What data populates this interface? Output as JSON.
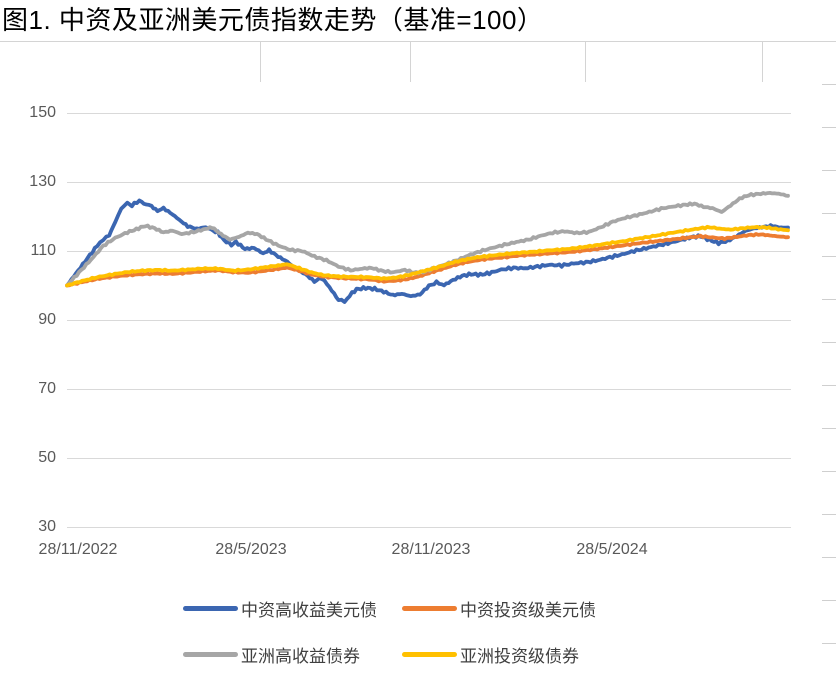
{
  "figure": {
    "title": "图1. 中资及亚洲美元债指数走势（基准=100）"
  },
  "chart_data": {
    "type": "line",
    "title": "图1. 中资及亚洲美元债指数走势（基准=100）",
    "baseline_note": "基准=100",
    "x_start_date": "28/11/2022",
    "x_unit": "months_after_start",
    "x_range_months": [
      0,
      24
    ],
    "x_tick_months": [
      0,
      6,
      12,
      18
    ],
    "x_tick_labels": [
      "28/11/2022",
      "28/5/2023",
      "28/11/2023",
      "28/5/2024"
    ],
    "ylim": [
      30,
      150
    ],
    "yticks": [
      150,
      130,
      110,
      90,
      70,
      50,
      30
    ],
    "grid": "horizontal",
    "legend_position": "bottom",
    "grid_color": "#d9d9d9",
    "axis_label_color": "#595959",
    "series": [
      {
        "name": "中资高收益美元债",
        "color": "#3b66b1",
        "points": [
          [
            0,
            100
          ],
          [
            0.3,
            103.5
          ],
          [
            0.6,
            107
          ],
          [
            1.0,
            111.5
          ],
          [
            1.2,
            113.5
          ],
          [
            1.4,
            114.5
          ],
          [
            1.6,
            118.5
          ],
          [
            1.8,
            122.5
          ],
          [
            2.0,
            123.8
          ],
          [
            2.15,
            123.2
          ],
          [
            2.4,
            124.6
          ],
          [
            2.55,
            123.8
          ],
          [
            2.8,
            123.0
          ],
          [
            3.0,
            121.6
          ],
          [
            3.2,
            122.4
          ],
          [
            3.5,
            120.6
          ],
          [
            3.8,
            118.5
          ],
          [
            4.0,
            117.2
          ],
          [
            4.3,
            116.4
          ],
          [
            4.6,
            116.9
          ],
          [
            5.0,
            115.3
          ],
          [
            5.2,
            113.2
          ],
          [
            5.45,
            111.8
          ],
          [
            5.6,
            112.6
          ],
          [
            5.9,
            110.6
          ],
          [
            6.2,
            110.9
          ],
          [
            6.5,
            109.3
          ],
          [
            6.7,
            110.2
          ],
          [
            7.0,
            108.4
          ],
          [
            7.3,
            106.9
          ],
          [
            7.6,
            104.7
          ],
          [
            7.9,
            103.3
          ],
          [
            8.2,
            101.2
          ],
          [
            8.45,
            102.2
          ],
          [
            8.7,
            99.5
          ],
          [
            9.0,
            95.8
          ],
          [
            9.2,
            95.3
          ],
          [
            9.45,
            97.8
          ],
          [
            9.6,
            98.9
          ],
          [
            9.9,
            99.3
          ],
          [
            10.2,
            99.0
          ],
          [
            10.5,
            98.2
          ],
          [
            10.8,
            97.2
          ],
          [
            11.1,
            97.6
          ],
          [
            11.4,
            96.9
          ],
          [
            11.7,
            97.4
          ],
          [
            12.0,
            99.9
          ],
          [
            12.25,
            100.9
          ],
          [
            12.5,
            100.1
          ],
          [
            12.8,
            101.6
          ],
          [
            13.1,
            102.8
          ],
          [
            13.4,
            103.3
          ],
          [
            13.7,
            103.1
          ],
          [
            14.0,
            103.6
          ],
          [
            14.4,
            104.6
          ],
          [
            14.8,
            105.1
          ],
          [
            15.2,
            105.0
          ],
          [
            15.6,
            105.5
          ],
          [
            16.0,
            106.0
          ],
          [
            16.4,
            105.8
          ],
          [
            16.8,
            106.4
          ],
          [
            17.2,
            106.7
          ],
          [
            17.6,
            107.3
          ],
          [
            18.0,
            108.2
          ],
          [
            18.4,
            109.0
          ],
          [
            18.8,
            110.0
          ],
          [
            19.2,
            110.8
          ],
          [
            19.6,
            111.6
          ],
          [
            20.0,
            112.4
          ],
          [
            20.4,
            113.3
          ],
          [
            20.7,
            114.0
          ],
          [
            21.0,
            114.3
          ],
          [
            21.3,
            113.2
          ],
          [
            21.6,
            112.3
          ],
          [
            21.9,
            112.9
          ],
          [
            22.2,
            114.3
          ],
          [
            22.5,
            115.9
          ],
          [
            22.8,
            116.6
          ],
          [
            23.1,
            117.0
          ],
          [
            23.4,
            117.3
          ],
          [
            23.6,
            116.8
          ],
          [
            23.9,
            116.8
          ]
        ]
      },
      {
        "name": "中资投资级美元债",
        "color": "#ed7d31",
        "points": [
          [
            0,
            100
          ],
          [
            0.5,
            101.0
          ],
          [
            1.0,
            101.9
          ],
          [
            1.5,
            102.5
          ],
          [
            2.0,
            103.0
          ],
          [
            2.5,
            103.3
          ],
          [
            3.0,
            103.5
          ],
          [
            3.5,
            103.4
          ],
          [
            4.0,
            103.7
          ],
          [
            4.5,
            104.1
          ],
          [
            5.0,
            104.4
          ],
          [
            5.5,
            103.9
          ],
          [
            6.0,
            103.7
          ],
          [
            6.5,
            104.2
          ],
          [
            7.0,
            104.8
          ],
          [
            7.3,
            105.2
          ],
          [
            7.7,
            104.3
          ],
          [
            8.1,
            103.2
          ],
          [
            8.5,
            102.6
          ],
          [
            9.0,
            102.2
          ],
          [
            9.5,
            102.0
          ],
          [
            10.0,
            101.8
          ],
          [
            10.5,
            101.2
          ],
          [
            10.9,
            101.4
          ],
          [
            11.3,
            101.9
          ],
          [
            11.7,
            102.7
          ],
          [
            12.0,
            103.6
          ],
          [
            12.4,
            104.7
          ],
          [
            12.8,
            105.8
          ],
          [
            13.2,
            106.7
          ],
          [
            13.6,
            107.3
          ],
          [
            14.0,
            107.8
          ],
          [
            14.5,
            108.2
          ],
          [
            15.0,
            108.7
          ],
          [
            15.5,
            109.0
          ],
          [
            16.0,
            109.3
          ],
          [
            16.5,
            109.6
          ],
          [
            17.0,
            110.0
          ],
          [
            17.5,
            110.5
          ],
          [
            18.0,
            111.1
          ],
          [
            18.5,
            111.7
          ],
          [
            19.0,
            112.3
          ],
          [
            19.5,
            112.8
          ],
          [
            20.0,
            113.3
          ],
          [
            20.5,
            113.8
          ],
          [
            21.0,
            114.3
          ],
          [
            21.4,
            113.9
          ],
          [
            21.8,
            113.6
          ],
          [
            22.2,
            114.1
          ],
          [
            22.6,
            114.6
          ],
          [
            23.0,
            114.8
          ],
          [
            23.3,
            114.5
          ],
          [
            23.6,
            114.2
          ],
          [
            23.9,
            114.0
          ]
        ]
      },
      {
        "name": "亚洲高收益债券",
        "color": "#a6a6a6",
        "points": [
          [
            0,
            100
          ],
          [
            0.4,
            103.8
          ],
          [
            0.8,
            107.5
          ],
          [
            1.2,
            111.5
          ],
          [
            1.6,
            113.8
          ],
          [
            2.0,
            115.4
          ],
          [
            2.3,
            116.3
          ],
          [
            2.6,
            117.3
          ],
          [
            2.9,
            116.6
          ],
          [
            3.2,
            115.4
          ],
          [
            3.5,
            115.9
          ],
          [
            3.8,
            114.9
          ],
          [
            4.2,
            115.5
          ],
          [
            4.6,
            116.4
          ],
          [
            4.8,
            116.9
          ],
          [
            5.1,
            114.9
          ],
          [
            5.4,
            113.3
          ],
          [
            5.7,
            114.1
          ],
          [
            6.0,
            115.3
          ],
          [
            6.3,
            114.9
          ],
          [
            6.6,
            113.4
          ],
          [
            7.0,
            111.6
          ],
          [
            7.4,
            110.3
          ],
          [
            7.8,
            110.0
          ],
          [
            8.2,
            108.4
          ],
          [
            8.6,
            107.3
          ],
          [
            9.0,
            105.5
          ],
          [
            9.4,
            104.4
          ],
          [
            9.8,
            104.9
          ],
          [
            10.1,
            105.1
          ],
          [
            10.4,
            104.3
          ],
          [
            10.8,
            103.8
          ],
          [
            11.2,
            104.5
          ],
          [
            11.5,
            103.7
          ],
          [
            11.8,
            103.9
          ],
          [
            12.1,
            104.8
          ],
          [
            12.5,
            106.0
          ],
          [
            12.9,
            107.2
          ],
          [
            13.3,
            108.7
          ],
          [
            13.7,
            109.9
          ],
          [
            14.1,
            110.9
          ],
          [
            14.5,
            111.8
          ],
          [
            14.9,
            112.6
          ],
          [
            15.3,
            113.3
          ],
          [
            15.7,
            114.4
          ],
          [
            16.1,
            115.3
          ],
          [
            16.5,
            115.7
          ],
          [
            16.9,
            115.2
          ],
          [
            17.3,
            115.5
          ],
          [
            17.7,
            116.9
          ],
          [
            18.1,
            118.5
          ],
          [
            18.5,
            119.6
          ],
          [
            18.9,
            120.4
          ],
          [
            19.3,
            121.3
          ],
          [
            19.7,
            122.3
          ],
          [
            20.1,
            122.9
          ],
          [
            20.5,
            123.4
          ],
          [
            20.8,
            123.7
          ],
          [
            21.1,
            122.8
          ],
          [
            21.4,
            122.4
          ],
          [
            21.7,
            121.3
          ],
          [
            22.0,
            123.2
          ],
          [
            22.3,
            125.2
          ],
          [
            22.6,
            126.2
          ],
          [
            23.0,
            126.6
          ],
          [
            23.3,
            126.8
          ],
          [
            23.6,
            126.6
          ],
          [
            23.9,
            126.0
          ]
        ]
      },
      {
        "name": "亚洲投资级债券",
        "color": "#ffc000",
        "points": [
          [
            0,
            100
          ],
          [
            0.5,
            101.3
          ],
          [
            1.0,
            102.4
          ],
          [
            1.5,
            103.2
          ],
          [
            2.0,
            103.9
          ],
          [
            2.5,
            104.3
          ],
          [
            3.0,
            104.5
          ],
          [
            3.5,
            104.3
          ],
          [
            4.0,
            104.6
          ],
          [
            4.5,
            104.9
          ],
          [
            5.0,
            104.9
          ],
          [
            5.5,
            104.3
          ],
          [
            6.0,
            104.6
          ],
          [
            6.5,
            105.2
          ],
          [
            7.0,
            105.8
          ],
          [
            7.3,
            106.2
          ],
          [
            7.7,
            105.0
          ],
          [
            8.1,
            103.8
          ],
          [
            8.5,
            103.0
          ],
          [
            9.0,
            102.6
          ],
          [
            9.5,
            102.5
          ],
          [
            10.0,
            102.4
          ],
          [
            10.5,
            102.0
          ],
          [
            10.9,
            102.3
          ],
          [
            11.3,
            103.0
          ],
          [
            11.7,
            103.9
          ],
          [
            12.0,
            104.6
          ],
          [
            12.4,
            105.6
          ],
          [
            12.8,
            106.7
          ],
          [
            13.2,
            107.5
          ],
          [
            13.6,
            108.2
          ],
          [
            14.0,
            108.6
          ],
          [
            14.5,
            109.1
          ],
          [
            15.0,
            109.5
          ],
          [
            15.5,
            109.8
          ],
          [
            16.0,
            110.2
          ],
          [
            16.5,
            110.5
          ],
          [
            17.0,
            111.0
          ],
          [
            17.5,
            111.6
          ],
          [
            18.0,
            112.3
          ],
          [
            18.5,
            112.9
          ],
          [
            19.0,
            113.7
          ],
          [
            19.5,
            114.4
          ],
          [
            20.0,
            115.2
          ],
          [
            20.5,
            115.9
          ],
          [
            21.0,
            116.6
          ],
          [
            21.3,
            116.9
          ],
          [
            21.7,
            116.4
          ],
          [
            22.0,
            116.2
          ],
          [
            22.4,
            116.6
          ],
          [
            22.8,
            116.9
          ],
          [
            23.2,
            116.8
          ],
          [
            23.5,
            116.4
          ],
          [
            23.9,
            116.0
          ]
        ]
      }
    ],
    "legend_rows": [
      [
        "中资高收益美元债",
        "中资投资级美元债"
      ],
      [
        "亚洲高收益债券",
        "亚洲投资级债券"
      ]
    ]
  }
}
